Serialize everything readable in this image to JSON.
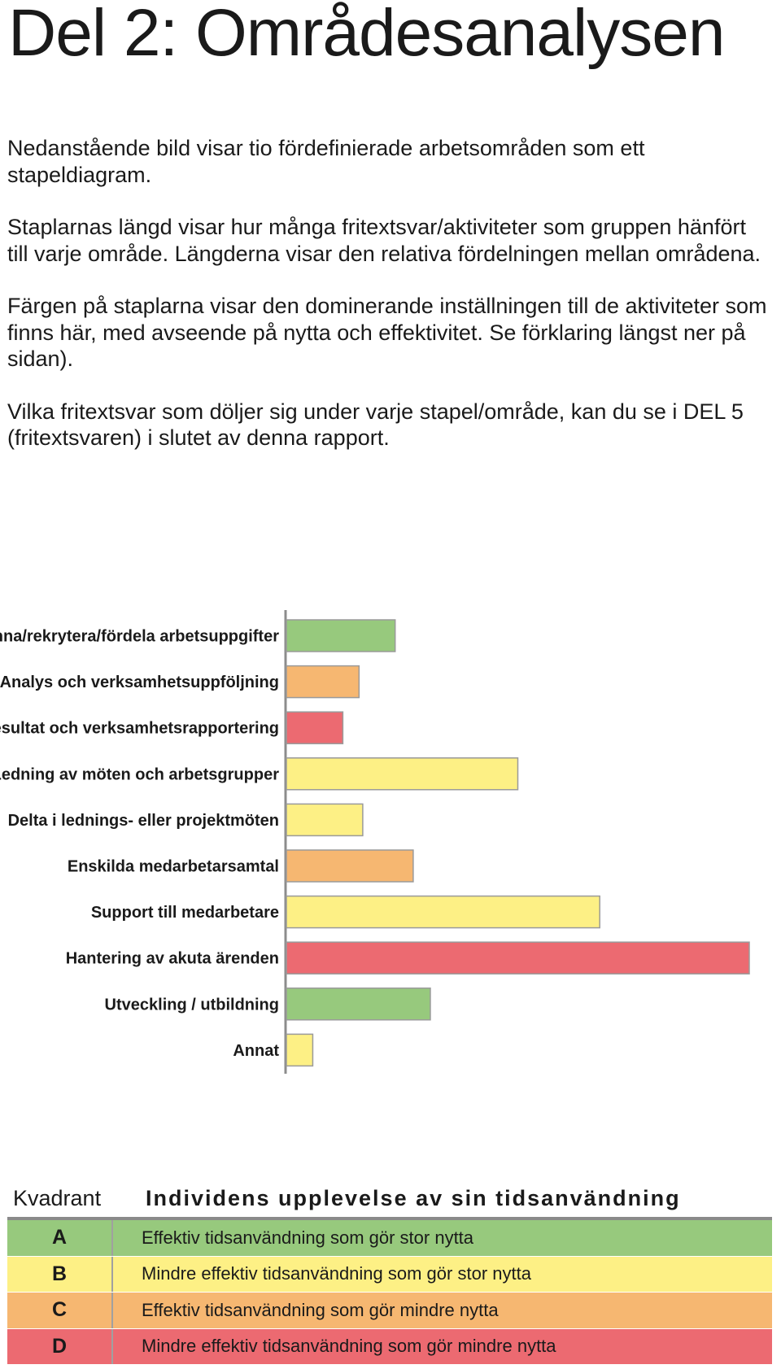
{
  "title": "Del 2: Områdesanalysen",
  "intro": [
    "Nedanstående bild visar tio fördefinierade arbetsområden som ett stapeldiagram.",
    "Staplarnas längd visar hur många fritextsvar/aktiviteter som gruppen hänfört till varje område. Längderna visar den relativa fördelningen mellan områdena.",
    "Färgen på staplarna visar den dominerande inställningen till de aktiviteter som finns här, med avseende på nytta och effektivitet. Se förklaring längst ner på sidan).",
    "Vilka fritextsvar som döljer sig under varje stapel/område, kan du se i DEL 5 (fritextsvaren) i slutet av denna rapport."
  ],
  "colors": {
    "A": "#97c97d",
    "B": "#fdf085",
    "C": "#f6b771",
    "D": "#ec6a71"
  },
  "chart_data": {
    "type": "bar",
    "orientation": "horizontal",
    "categories": [
      "Bemanna/rekrytera/fördela arbetsuppgifter",
      "Analys och verksamhetsuppföljning",
      "Resultat och verksamhetsrapportering",
      "Ledning av möten och arbetsgrupper",
      "Delta i lednings- eller projektmöten",
      "Enskilda medarbetarsamtal",
      "Support till medarbetare",
      "Hantering av akuta ärenden",
      "Utveckling / utbildning",
      "Annat"
    ],
    "values": [
      0.235,
      0.157,
      0.122,
      0.5,
      0.165,
      0.274,
      0.677,
      1.0,
      0.311,
      0.057
    ],
    "quadrants": [
      "A",
      "C",
      "D",
      "B",
      "B",
      "C",
      "B",
      "D",
      "A",
      "B"
    ],
    "value_axis_shown": false
  },
  "legend": {
    "col1_header": "Kvadrant",
    "col2_header": "Individens upplevelse av sin tidsanvändning",
    "rows": [
      {
        "code": "A",
        "text": "Effektiv tidsanvändning som gör stor nytta"
      },
      {
        "code": "B",
        "text": "Mindre effektiv tidsanvändning som gör stor nytta"
      },
      {
        "code": "C",
        "text": "Effektiv tidsanvändning som gör mindre nytta"
      },
      {
        "code": "D",
        "text": "Mindre effektiv tidsanvändning som gör mindre nytta"
      }
    ]
  }
}
